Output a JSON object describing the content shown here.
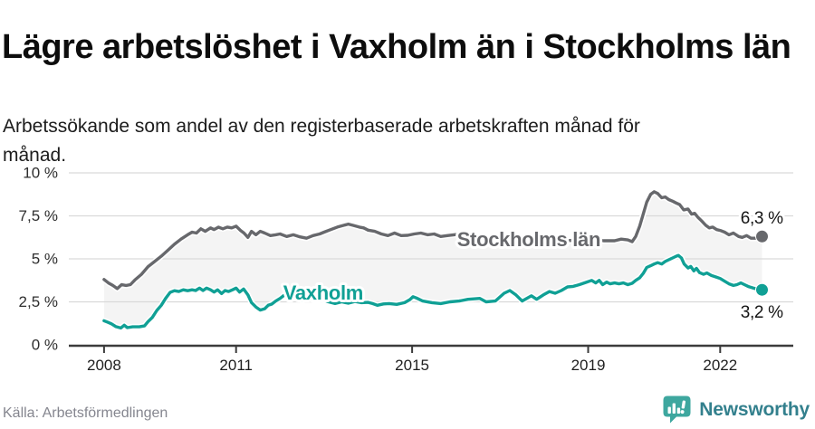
{
  "header": {
    "title": "Lägre arbetslöshet i Vaxholm än i Stockholms län",
    "subtitle": "Arbetssökande som andel av den registerbaserade arbetskraften månad för månad."
  },
  "footer": {
    "source": "Källa: Arbetsförmedlingen",
    "brand": "Newsworthy",
    "brand_icon": "speech-bubble-bar-chart-icon",
    "brand_color": "#3ea79f",
    "brand_text_color": "#33808d"
  },
  "chart_data": {
    "type": "line",
    "title": "Lägre arbetslöshet i Vaxholm än i Stockholms län",
    "subtitle": "Arbetssökande som andel av den registerbaserade arbetskraften månad för månad.",
    "xlabel": "",
    "ylabel": "",
    "grid": true,
    "legend_position": "inline-labels",
    "x_axis": {
      "lim": [
        2007.2,
        2023.66
      ],
      "ticks": [
        {
          "value": 2008,
          "label": "2008"
        },
        {
          "value": 2011,
          "label": "2011"
        },
        {
          "value": 2015,
          "label": "2015"
        },
        {
          "value": 2019,
          "label": "2019"
        },
        {
          "value": 2022,
          "label": "2022"
        }
      ]
    },
    "y_axis": {
      "lim": [
        0,
        10
      ],
      "ticks": [
        {
          "value": 0,
          "label": "0 %"
        },
        {
          "value": 2.5,
          "label": "2,5 %"
        },
        {
          "value": 5,
          "label": "5 %"
        },
        {
          "value": 7.5,
          "label": "7,5 %"
        },
        {
          "value": 10,
          "label": "10 %"
        }
      ]
    },
    "style": {
      "area_fill": "#f4f4f4",
      "grid_color": "#d9d9d9",
      "axis_color": "#3b3b3b",
      "halo_color": "#ffffff"
    },
    "series": [
      {
        "name": "Stockholms län",
        "color": "#67686c",
        "end_value_label": "6,3 %",
        "points": [
          [
            2008.0,
            3.8
          ],
          [
            2008.1,
            3.6
          ],
          [
            2008.2,
            3.45
          ],
          [
            2008.3,
            3.27
          ],
          [
            2008.4,
            3.5
          ],
          [
            2008.5,
            3.45
          ],
          [
            2008.6,
            3.5
          ],
          [
            2008.7,
            3.77
          ],
          [
            2008.85,
            4.1
          ],
          [
            2009.0,
            4.55
          ],
          [
            2009.15,
            4.85
          ],
          [
            2009.3,
            5.15
          ],
          [
            2009.45,
            5.5
          ],
          [
            2009.6,
            5.85
          ],
          [
            2009.75,
            6.15
          ],
          [
            2009.9,
            6.4
          ],
          [
            2010.0,
            6.55
          ],
          [
            2010.1,
            6.5
          ],
          [
            2010.2,
            6.75
          ],
          [
            2010.3,
            6.6
          ],
          [
            2010.42,
            6.8
          ],
          [
            2010.5,
            6.7
          ],
          [
            2010.6,
            6.84
          ],
          [
            2010.7,
            6.75
          ],
          [
            2010.8,
            6.85
          ],
          [
            2010.9,
            6.8
          ],
          [
            2011.0,
            6.9
          ],
          [
            2011.1,
            6.65
          ],
          [
            2011.18,
            6.5
          ],
          [
            2011.27,
            6.25
          ],
          [
            2011.35,
            6.6
          ],
          [
            2011.45,
            6.4
          ],
          [
            2011.55,
            6.6
          ],
          [
            2011.65,
            6.5
          ],
          [
            2011.78,
            6.35
          ],
          [
            2011.9,
            6.4
          ],
          [
            2012.0,
            6.45
          ],
          [
            2012.15,
            6.3
          ],
          [
            2012.3,
            6.4
          ],
          [
            2012.45,
            6.28
          ],
          [
            2012.6,
            6.2
          ],
          [
            2012.75,
            6.35
          ],
          [
            2012.9,
            6.45
          ],
          [
            2013.0,
            6.55
          ],
          [
            2013.15,
            6.7
          ],
          [
            2013.3,
            6.85
          ],
          [
            2013.45,
            6.95
          ],
          [
            2013.55,
            7.02
          ],
          [
            2013.65,
            6.95
          ],
          [
            2013.8,
            6.85
          ],
          [
            2013.9,
            6.8
          ],
          [
            2014.0,
            6.67
          ],
          [
            2014.15,
            6.6
          ],
          [
            2014.3,
            6.45
          ],
          [
            2014.45,
            6.35
          ],
          [
            2014.6,
            6.5
          ],
          [
            2014.75,
            6.35
          ],
          [
            2014.9,
            6.37
          ],
          [
            2015.05,
            6.45
          ],
          [
            2015.2,
            6.5
          ],
          [
            2015.35,
            6.4
          ],
          [
            2015.5,
            6.45
          ],
          [
            2015.65,
            6.3
          ],
          [
            2015.8,
            6.35
          ],
          [
            2015.95,
            6.4
          ],
          [
            2016.1,
            6.45
          ],
          [
            2016.3,
            6.35
          ],
          [
            2016.5,
            6.3
          ],
          [
            2016.75,
            6.25
          ],
          [
            2017.0,
            6.3
          ],
          [
            2017.3,
            6.2
          ],
          [
            2017.6,
            6.15
          ],
          [
            2017.9,
            6.2
          ],
          [
            2018.2,
            6.1
          ],
          [
            2018.5,
            6.05
          ],
          [
            2018.8,
            6.1
          ],
          [
            2019.1,
            6.15
          ],
          [
            2019.35,
            6.05
          ],
          [
            2019.6,
            6.05
          ],
          [
            2019.75,
            6.15
          ],
          [
            2019.9,
            6.1
          ],
          [
            2020.0,
            6.0
          ],
          [
            2020.08,
            6.3
          ],
          [
            2020.17,
            6.9
          ],
          [
            2020.25,
            7.6
          ],
          [
            2020.33,
            8.3
          ],
          [
            2020.42,
            8.75
          ],
          [
            2020.5,
            8.9
          ],
          [
            2020.58,
            8.8
          ],
          [
            2020.67,
            8.55
          ],
          [
            2020.75,
            8.6
          ],
          [
            2020.83,
            8.45
          ],
          [
            2020.92,
            8.35
          ],
          [
            2021.0,
            8.25
          ],
          [
            2021.08,
            8.15
          ],
          [
            2021.17,
            7.85
          ],
          [
            2021.27,
            7.9
          ],
          [
            2021.35,
            7.6
          ],
          [
            2021.42,
            7.65
          ],
          [
            2021.5,
            7.4
          ],
          [
            2021.58,
            7.2
          ],
          [
            2021.67,
            6.95
          ],
          [
            2021.75,
            6.8
          ],
          [
            2021.83,
            6.85
          ],
          [
            2021.92,
            6.7
          ],
          [
            2022.0,
            6.65
          ],
          [
            2022.1,
            6.55
          ],
          [
            2022.2,
            6.4
          ],
          [
            2022.3,
            6.5
          ],
          [
            2022.42,
            6.3
          ],
          [
            2022.5,
            6.25
          ],
          [
            2022.6,
            6.35
          ],
          [
            2022.7,
            6.2
          ],
          [
            2022.8,
            6.2
          ],
          [
            2022.88,
            6.25
          ],
          [
            2022.95,
            6.3
          ]
        ]
      },
      {
        "name": "Vaxholm",
        "color": "#10a095",
        "end_value_label": "3,2 %",
        "points": [
          [
            2008.0,
            1.4
          ],
          [
            2008.08,
            1.32
          ],
          [
            2008.17,
            1.22
          ],
          [
            2008.27,
            1.06
          ],
          [
            2008.38,
            0.98
          ],
          [
            2008.46,
            1.14
          ],
          [
            2008.53,
            1.0
          ],
          [
            2008.65,
            1.05
          ],
          [
            2008.8,
            1.05
          ],
          [
            2008.92,
            1.1
          ],
          [
            2009.0,
            1.35
          ],
          [
            2009.1,
            1.6
          ],
          [
            2009.2,
            2.0
          ],
          [
            2009.3,
            2.3
          ],
          [
            2009.4,
            2.7
          ],
          [
            2009.5,
            3.05
          ],
          [
            2009.6,
            3.15
          ],
          [
            2009.7,
            3.1
          ],
          [
            2009.8,
            3.2
          ],
          [
            2009.9,
            3.15
          ],
          [
            2010.0,
            3.2
          ],
          [
            2010.08,
            3.16
          ],
          [
            2010.17,
            3.3
          ],
          [
            2010.25,
            3.16
          ],
          [
            2010.33,
            3.3
          ],
          [
            2010.42,
            3.2
          ],
          [
            2010.5,
            3.07
          ],
          [
            2010.58,
            3.2
          ],
          [
            2010.67,
            2.98
          ],
          [
            2010.75,
            3.16
          ],
          [
            2010.83,
            3.1
          ],
          [
            2010.92,
            3.2
          ],
          [
            2011.0,
            3.3
          ],
          [
            2011.08,
            3.07
          ],
          [
            2011.17,
            3.25
          ],
          [
            2011.27,
            2.9
          ],
          [
            2011.35,
            2.46
          ],
          [
            2011.45,
            2.2
          ],
          [
            2011.55,
            2.02
          ],
          [
            2011.65,
            2.1
          ],
          [
            2011.73,
            2.3
          ],
          [
            2011.81,
            2.37
          ],
          [
            2011.9,
            2.54
          ],
          [
            2012.0,
            2.7
          ],
          [
            2012.1,
            2.9
          ],
          [
            2012.2,
            2.98
          ],
          [
            2012.35,
            2.75
          ],
          [
            2012.5,
            2.6
          ],
          [
            2012.65,
            2.7
          ],
          [
            2012.8,
            2.58
          ],
          [
            2012.95,
            2.65
          ],
          [
            2013.1,
            2.5
          ],
          [
            2013.25,
            2.4
          ],
          [
            2013.4,
            2.5
          ],
          [
            2013.55,
            2.42
          ],
          [
            2013.7,
            2.52
          ],
          [
            2013.85,
            2.45
          ],
          [
            2014.0,
            2.47
          ],
          [
            2014.1,
            2.4
          ],
          [
            2014.21,
            2.3
          ],
          [
            2014.35,
            2.38
          ],
          [
            2014.48,
            2.4
          ],
          [
            2014.65,
            2.35
          ],
          [
            2014.83,
            2.45
          ],
          [
            2014.95,
            2.63
          ],
          [
            2015.02,
            2.8
          ],
          [
            2015.1,
            2.72
          ],
          [
            2015.24,
            2.55
          ],
          [
            2015.45,
            2.45
          ],
          [
            2015.65,
            2.4
          ],
          [
            2015.86,
            2.5
          ],
          [
            2016.07,
            2.55
          ],
          [
            2016.27,
            2.65
          ],
          [
            2016.54,
            2.7
          ],
          [
            2016.68,
            2.5
          ],
          [
            2016.89,
            2.55
          ],
          [
            2017.09,
            3.0
          ],
          [
            2017.22,
            3.16
          ],
          [
            2017.36,
            2.9
          ],
          [
            2017.5,
            2.55
          ],
          [
            2017.71,
            2.85
          ],
          [
            2017.83,
            2.65
          ],
          [
            2017.98,
            2.9
          ],
          [
            2018.12,
            3.1
          ],
          [
            2018.25,
            3.0
          ],
          [
            2018.39,
            3.16
          ],
          [
            2018.53,
            3.37
          ],
          [
            2018.66,
            3.4
          ],
          [
            2018.8,
            3.5
          ],
          [
            2018.95,
            3.63
          ],
          [
            2019.08,
            3.75
          ],
          [
            2019.17,
            3.6
          ],
          [
            2019.25,
            3.75
          ],
          [
            2019.33,
            3.5
          ],
          [
            2019.42,
            3.65
          ],
          [
            2019.5,
            3.55
          ],
          [
            2019.6,
            3.6
          ],
          [
            2019.7,
            3.55
          ],
          [
            2019.8,
            3.6
          ],
          [
            2019.9,
            3.5
          ],
          [
            2020.0,
            3.58
          ],
          [
            2020.08,
            3.75
          ],
          [
            2020.17,
            3.9
          ],
          [
            2020.25,
            4.15
          ],
          [
            2020.33,
            4.5
          ],
          [
            2020.42,
            4.6
          ],
          [
            2020.5,
            4.7
          ],
          [
            2020.58,
            4.78
          ],
          [
            2020.67,
            4.7
          ],
          [
            2020.75,
            4.85
          ],
          [
            2020.83,
            4.95
          ],
          [
            2020.92,
            5.05
          ],
          [
            2021.0,
            5.15
          ],
          [
            2021.05,
            5.2
          ],
          [
            2021.12,
            5.05
          ],
          [
            2021.18,
            4.7
          ],
          [
            2021.27,
            4.47
          ],
          [
            2021.33,
            4.56
          ],
          [
            2021.4,
            4.3
          ],
          [
            2021.46,
            4.45
          ],
          [
            2021.53,
            4.2
          ],
          [
            2021.62,
            4.1
          ],
          [
            2021.7,
            4.18
          ],
          [
            2021.8,
            4.03
          ],
          [
            2021.9,
            3.95
          ],
          [
            2022.0,
            3.86
          ],
          [
            2022.1,
            3.7
          ],
          [
            2022.2,
            3.55
          ],
          [
            2022.3,
            3.45
          ],
          [
            2022.38,
            3.5
          ],
          [
            2022.47,
            3.6
          ],
          [
            2022.55,
            3.5
          ],
          [
            2022.65,
            3.38
          ],
          [
            2022.75,
            3.3
          ],
          [
            2022.85,
            3.25
          ],
          [
            2022.95,
            3.2
          ]
        ]
      }
    ],
    "labels": [
      {
        "text": "Stockholms län",
        "year": 2016.02,
        "pct": 5.74,
        "color": "#67686c",
        "bold": true,
        "size": 22,
        "anchor": "start"
      },
      {
        "text": "Vaxholm",
        "year": 2012.07,
        "pct": 2.63,
        "color": "#10a095",
        "bold": true,
        "size": 22,
        "anchor": "start"
      },
      {
        "text": "6,3 %",
        "year": 2022.46,
        "pct": 7.05,
        "color": "#141414",
        "bold": false,
        "size": 19,
        "anchor": "start"
      },
      {
        "text": "3,2 %",
        "year": 2022.46,
        "pct": 1.58,
        "color": "#141414",
        "bold": false,
        "size": 19,
        "anchor": "start"
      }
    ]
  }
}
